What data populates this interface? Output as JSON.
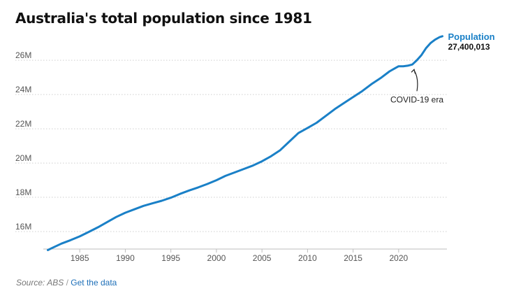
{
  "chart_data": {
    "type": "line",
    "title": "Australia's total population since 1981",
    "xlabel": "",
    "ylabel": "",
    "xlim": [
      1981,
      2025.3
    ],
    "ylim": [
      14.9,
      27.8
    ],
    "x_ticks": [
      1985,
      1990,
      1995,
      2000,
      2005,
      2010,
      2015,
      2020
    ],
    "y_ticks": [
      16,
      18,
      20,
      22,
      24,
      26
    ],
    "y_tick_labels": [
      "16M",
      "18M",
      "20M",
      "22M",
      "24M",
      "26M"
    ],
    "grid": "horizontal dotted",
    "series": [
      {
        "name": "Population",
        "end_label": "27,400,013",
        "color": "#1a80c7",
        "x": [
          1981.5,
          1982,
          1983,
          1984,
          1985,
          1986,
          1987,
          1988,
          1989,
          1990,
          1991,
          1992,
          1993,
          1994,
          1995,
          1996,
          1997,
          1998,
          1999,
          2000,
          2001,
          2002,
          2003,
          2004,
          2005,
          2006,
          2007,
          2008,
          2009,
          2010,
          2011,
          2012,
          2013,
          2014,
          2015,
          2016,
          2017,
          2018,
          2019,
          2019.5,
          2020,
          2020.5,
          2021,
          2021.5,
          2022,
          2022.5,
          2023,
          2023.5,
          2024,
          2024.5,
          2024.8
        ],
        "values": [
          14.92,
          15.05,
          15.3,
          15.5,
          15.72,
          15.98,
          16.25,
          16.55,
          16.85,
          17.1,
          17.3,
          17.5,
          17.65,
          17.8,
          17.98,
          18.2,
          18.4,
          18.58,
          18.78,
          19.0,
          19.25,
          19.45,
          19.65,
          19.85,
          20.1,
          20.4,
          20.75,
          21.25,
          21.75,
          22.05,
          22.35,
          22.75,
          23.15,
          23.5,
          23.85,
          24.2,
          24.6,
          24.95,
          25.35,
          25.5,
          25.65,
          25.65,
          25.68,
          25.75,
          26.0,
          26.3,
          26.7,
          27.0,
          27.2,
          27.35,
          27.4
        ]
      }
    ],
    "annotations": [
      {
        "text": "COVID-19 era",
        "x": 2021.7,
        "y": 25.5
      }
    ]
  },
  "source": {
    "text": "Source: ABS",
    "separator": "/",
    "link_label": "Get the data"
  }
}
